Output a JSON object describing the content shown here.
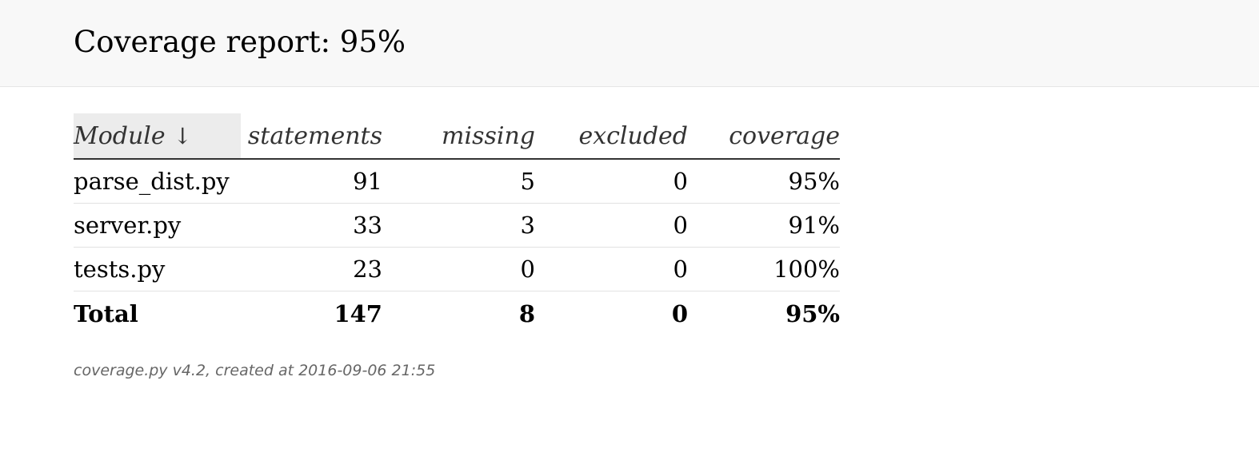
{
  "header": {
    "title": "Coverage report: 95%"
  },
  "table": {
    "columns": {
      "module": "Module",
      "statements": "statements",
      "missing": "missing",
      "excluded": "excluded",
      "coverage": "coverage"
    },
    "sort_indicator": "↓",
    "rows": [
      {
        "module": "parse_dist.py",
        "statements": "91",
        "missing": "5",
        "excluded": "0",
        "coverage": "95%"
      },
      {
        "module": "server.py",
        "statements": "33",
        "missing": "3",
        "excluded": "0",
        "coverage": "91%"
      },
      {
        "module": "tests.py",
        "statements": "23",
        "missing": "0",
        "excluded": "0",
        "coverage": "100%"
      }
    ],
    "total": {
      "module": "Total",
      "statements": "147",
      "missing": "8",
      "excluded": "0",
      "coverage": "95%"
    }
  },
  "footer": {
    "text": "coverage.py v4.2, created at 2016-09-06 21:55"
  },
  "colors": {
    "header_background": "#f8f8f8",
    "sorted_column_background": "#ececec",
    "header_text": "#333333",
    "footer_text": "#666666"
  }
}
